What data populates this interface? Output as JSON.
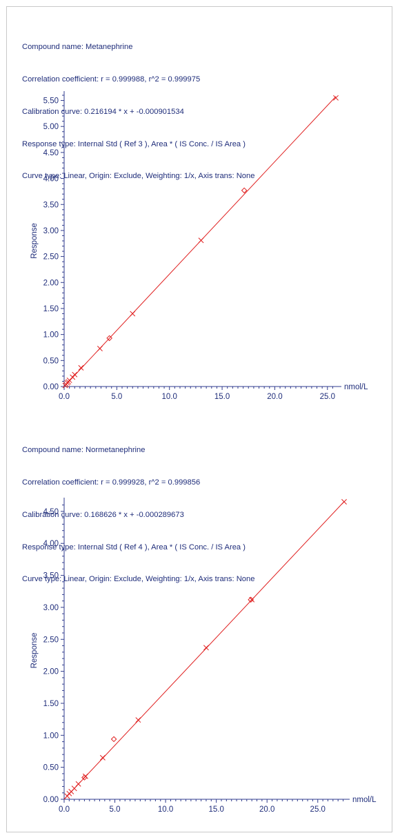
{
  "colors": {
    "text": "#1f2d7a",
    "axis": "#2e3a8c",
    "curve": "#e02020"
  },
  "chart_data": [
    {
      "type": "scatter",
      "info_lines": [
        "Compound name: Metanephrine",
        "Correlation coefficient: r = 0.999988, r^2 = 0.999975",
        "Calibration curve: 0.216194 * x + -0.000901534",
        "Response type: Internal Std ( Ref 3 ), Area * ( IS Conc. / IS Area )",
        "Curve type: Linear, Origin: Exclude, Weighting: 1/x, Axis trans: None"
      ],
      "xlabel": "nmol/L",
      "ylabel": "Response",
      "xlim": [
        0,
        25.8
      ],
      "ylim": [
        0,
        5.6
      ],
      "xticks": [
        "0.0",
        "5.0",
        "10.0",
        "15.0",
        "20.0",
        "25.0"
      ],
      "yticks": [
        "0.00",
        "0.50",
        "1.00",
        "1.50",
        "2.00",
        "2.50",
        "3.00",
        "3.50",
        "4.00",
        "4.50",
        "5.00",
        "5.50"
      ],
      "fit": {
        "slope": 0.216194,
        "intercept": -0.000901534,
        "x_range": [
          0,
          25.8
        ]
      },
      "points": [
        {
          "x": 0.1,
          "y": 0.02,
          "marker": "x"
        },
        {
          "x": 0.2,
          "y": 0.04,
          "marker": "x"
        },
        {
          "x": 0.3,
          "y": 0.07,
          "marker": "x"
        },
        {
          "x": 0.4,
          "y": 0.09,
          "marker": "x"
        },
        {
          "x": 0.5,
          "y": 0.12,
          "marker": "x"
        },
        {
          "x": 0.8,
          "y": 0.18,
          "marker": "x"
        },
        {
          "x": 1.0,
          "y": 0.23,
          "marker": "x"
        },
        {
          "x": 1.6,
          "y": 0.36,
          "marker": "x"
        },
        {
          "x": 3.4,
          "y": 0.73,
          "marker": "x"
        },
        {
          "x": 4.3,
          "y": 0.93,
          "marker": "diamond"
        },
        {
          "x": 6.5,
          "y": 1.4,
          "marker": "x"
        },
        {
          "x": 13.0,
          "y": 2.81,
          "marker": "x"
        },
        {
          "x": 17.1,
          "y": 3.77,
          "marker": "diamond"
        },
        {
          "x": 25.8,
          "y": 5.55,
          "marker": "x"
        }
      ]
    },
    {
      "type": "scatter",
      "info_lines": [
        "Compound name: Normetanephrine",
        "Correlation coefficient: r = 0.999928, r^2 = 0.999856",
        "Calibration curve: 0.168626 * x + -0.000289673",
        "Response type: Internal Std ( Ref 4 ), Area * ( IS Conc. / IS Area )",
        "Curve type: Linear, Origin: Exclude, Weighting: 1/x, Axis trans: None"
      ],
      "xlabel": "nmol/L",
      "ylabel": "Response",
      "xlim": [
        0,
        27.6
      ],
      "ylim": [
        0,
        4.65
      ],
      "xticks": [
        "0.0",
        "5.0",
        "10.0",
        "15.0",
        "20.0",
        "25.0"
      ],
      "yticks": [
        "0.00",
        "0.50",
        "1.00",
        "1.50",
        "2.00",
        "2.50",
        "3.00",
        "3.50",
        "4.00",
        "4.50"
      ],
      "fit": {
        "slope": 0.168626,
        "intercept": -0.000289673,
        "x_range": [
          0,
          27.6
        ]
      },
      "points": [
        {
          "x": 0.3,
          "y": 0.05,
          "marker": "x"
        },
        {
          "x": 0.5,
          "y": 0.09,
          "marker": "x"
        },
        {
          "x": 0.7,
          "y": 0.12,
          "marker": "x"
        },
        {
          "x": 1.0,
          "y": 0.17,
          "marker": "x"
        },
        {
          "x": 1.4,
          "y": 0.24,
          "marker": "x"
        },
        {
          "x": 2.0,
          "y": 0.34,
          "marker": "diamond"
        },
        {
          "x": 2.1,
          "y": 0.36,
          "marker": "x"
        },
        {
          "x": 3.8,
          "y": 0.65,
          "marker": "x"
        },
        {
          "x": 4.9,
          "y": 0.94,
          "marker": "diamond"
        },
        {
          "x": 7.3,
          "y": 1.24,
          "marker": "x"
        },
        {
          "x": 14.0,
          "y": 2.37,
          "marker": "x"
        },
        {
          "x": 18.4,
          "y": 3.12,
          "marker": "diamond"
        },
        {
          "x": 18.5,
          "y": 3.12,
          "marker": "x"
        },
        {
          "x": 27.6,
          "y": 4.65,
          "marker": "x"
        }
      ]
    }
  ]
}
